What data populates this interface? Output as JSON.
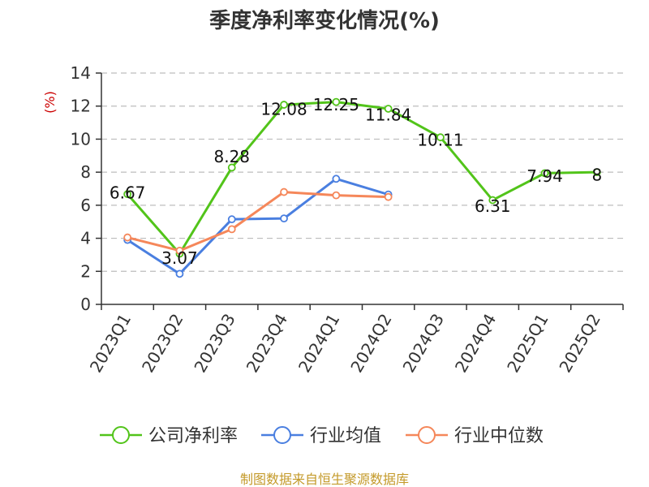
{
  "chart_data": {
    "type": "line",
    "title": "季度净利率变化情况(%)",
    "ylabel": "(%)",
    "xlabel": "",
    "categories": [
      "2023Q1",
      "2023Q2",
      "2023Q3",
      "2023Q4",
      "2024Q1",
      "2024Q2",
      "2024Q3",
      "2024Q4",
      "2025Q1",
      "2025Q2"
    ],
    "ylim": [
      0,
      14
    ],
    "yticks": [
      0,
      2,
      4,
      6,
      8,
      10,
      12,
      14
    ],
    "grid": true,
    "legend_position": "bottom",
    "series": [
      {
        "name": "公司净利率",
        "color": "#52c41a",
        "values": [
          6.67,
          3.07,
          8.28,
          12.08,
          12.25,
          11.84,
          10.11,
          6.31,
          7.94,
          8
        ],
        "labels": [
          "6.67",
          "3.07",
          "8.28",
          "12.08",
          "12.25",
          "11.84",
          "10.11",
          "6.31",
          "7.94",
          "8"
        ]
      },
      {
        "name": "行业均值",
        "color": "#4a7fe0",
        "values": [
          3.9,
          1.85,
          5.15,
          5.2,
          7.6,
          6.65,
          null,
          null,
          null,
          null
        ]
      },
      {
        "name": "行业中位数",
        "color": "#f5875a",
        "values": [
          4.05,
          3.25,
          4.55,
          6.8,
          6.6,
          6.5,
          null,
          null,
          null,
          null
        ]
      }
    ]
  },
  "footer": {
    "source": "制图数据来自恒生聚源数据库"
  }
}
